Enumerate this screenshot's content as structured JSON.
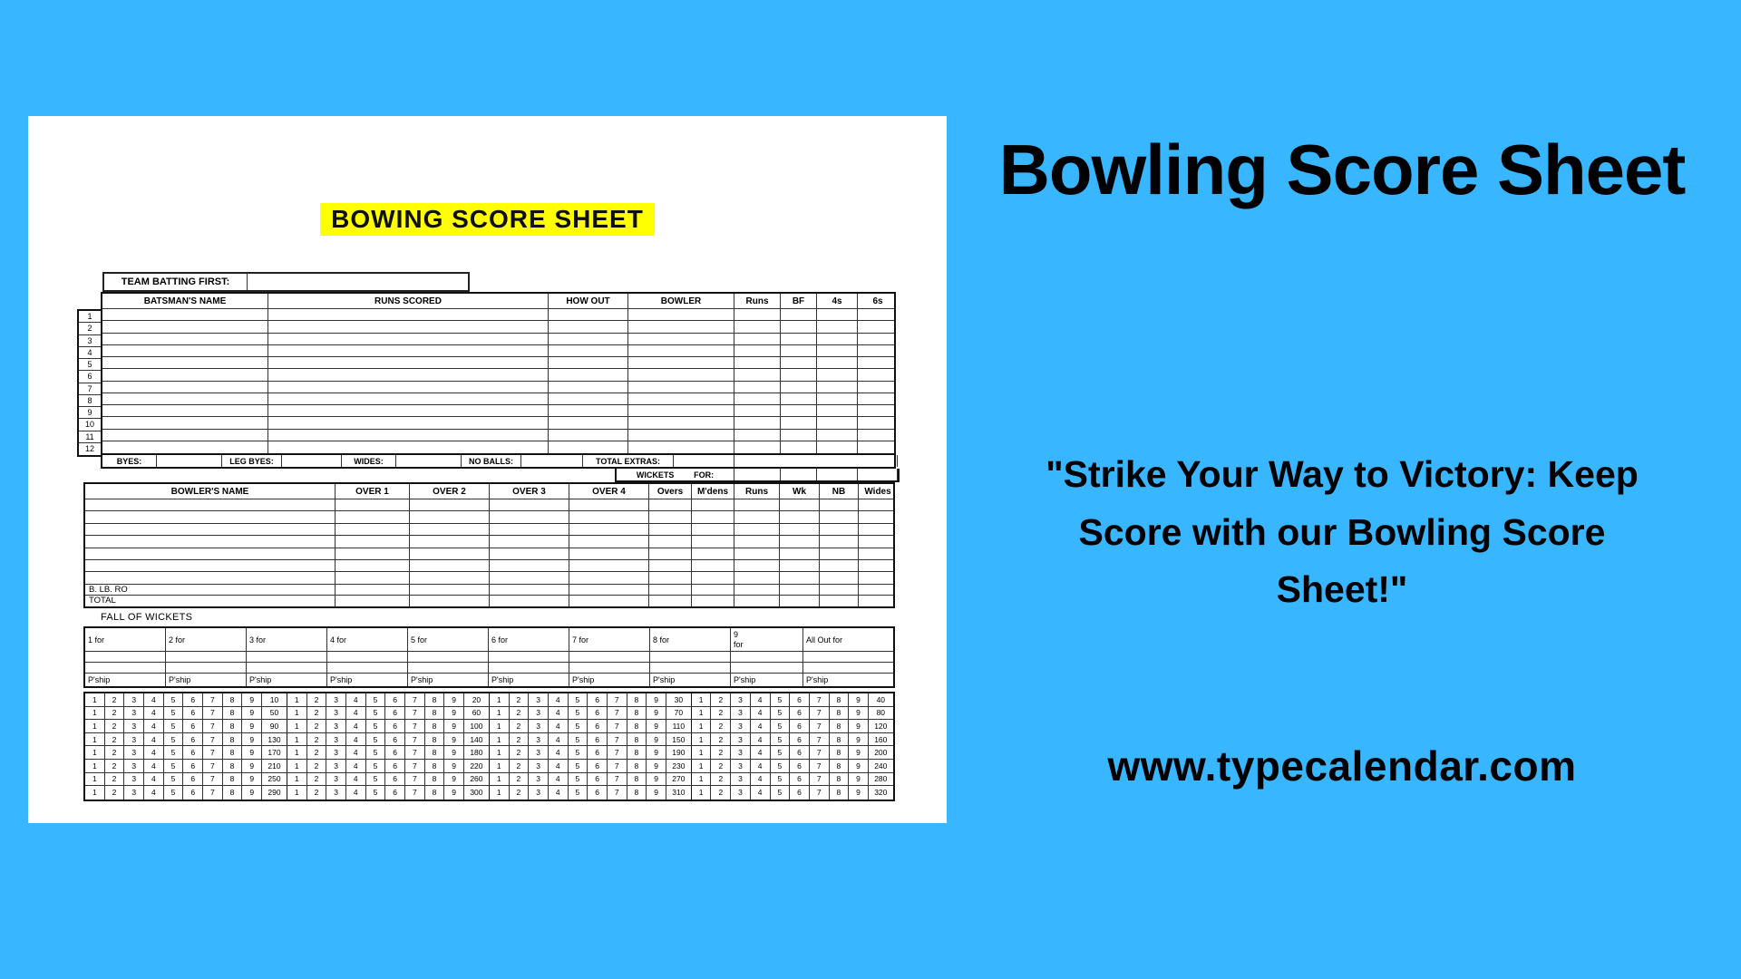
{
  "page": {
    "background_color": "#38b6ff",
    "sheet_color": "#ffffff",
    "highlight_color": "#ffff00",
    "text_color": "#000000"
  },
  "sheet": {
    "title": "BOWING SCORE SHEET",
    "team_batting": {
      "label": "TEAM BATTING FIRST:",
      "value": ""
    },
    "batting_table": {
      "headers": [
        "BATSMAN'S NAME",
        "RUNS SCORED",
        "HOW OUT",
        "BOWLER",
        "Runs",
        "BF",
        "4s",
        "6s"
      ],
      "row_numbers": [
        "1",
        "2",
        "3",
        "4",
        "5",
        "6",
        "7",
        "8",
        "9",
        "10",
        "11",
        "12"
      ]
    },
    "extras": {
      "byes_label": "BYES:",
      "leg_byes_label": "LEG BYES:",
      "wides_label": "WIDES:",
      "no_balls_label": "NO BALLS:",
      "total_extras_label": "TOTAL EXTRAS:",
      "wickets_label": "WICKETS",
      "for_label": "FOR:"
    },
    "bowling_table": {
      "headers": [
        "BOWLER'S NAME",
        "OVER 1",
        "OVER 2",
        "OVER 3",
        "OVER 4",
        "Overs",
        "M'dens",
        "Runs",
        "Wk",
        "NB",
        "Wides"
      ],
      "empty_row_count": 7,
      "footer_labels": [
        "B. LB. RO",
        "TOTAL"
      ]
    },
    "fall_of_wickets": {
      "section_label": "FALL OF WICKETS",
      "columns": [
        "1 for",
        "2 for",
        "3 for",
        "4 for",
        "5 for",
        "6 for",
        "7 for",
        "8 for",
        "9 for",
        "All Out for"
      ],
      "pship_label": "P'ship"
    },
    "run_grid": {
      "digits": [
        "1",
        "2",
        "3",
        "4",
        "5",
        "6",
        "7",
        "8",
        "9"
      ],
      "row_totals": [
        [
          "10",
          "20",
          "30",
          "40"
        ],
        [
          "50",
          "60",
          "70",
          "80"
        ],
        [
          "90",
          "100",
          "110",
          "120"
        ],
        [
          "130",
          "140",
          "150",
          "160"
        ],
        [
          "170",
          "180",
          "190",
          "200"
        ],
        [
          "210",
          "220",
          "230",
          "240"
        ],
        [
          "250",
          "260",
          "270",
          "280"
        ],
        [
          "290",
          "300",
          "310",
          "320"
        ]
      ]
    }
  },
  "right_panel": {
    "heading": "Bowling Score Sheet",
    "quote_lines": [
      "\"Strike Your Way to Victory: Keep",
      "Score with our Bowling Score",
      "Sheet!\""
    ],
    "website": "www.typecalendar.com"
  }
}
